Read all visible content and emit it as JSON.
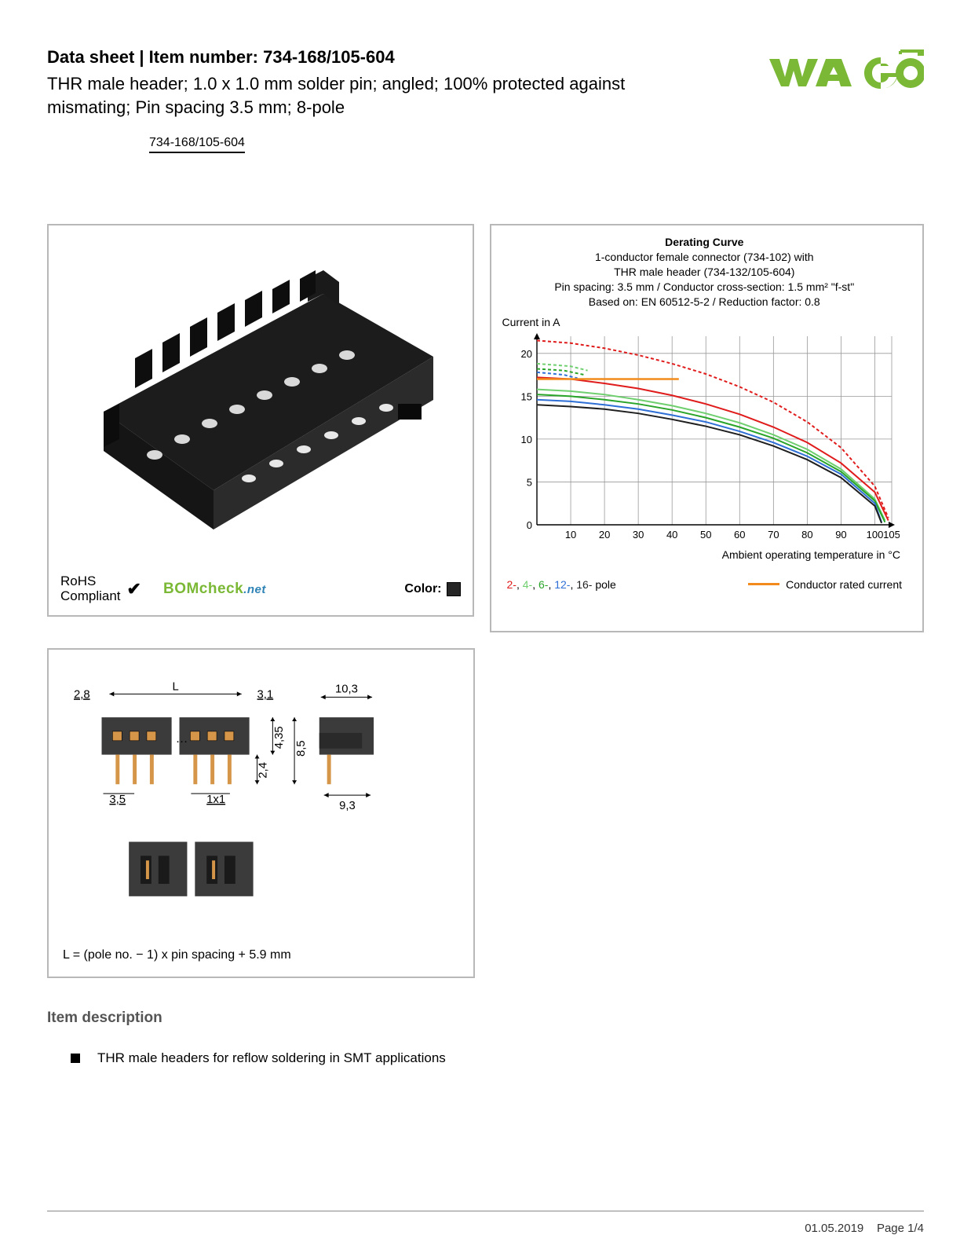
{
  "header": {
    "title_prefix": "Data sheet  |  Item number:",
    "item_number": "734-168/105-604",
    "subtitle": "THR male header; 1.0 x 1.0 mm solder pin; angled; 100% protected against mismating; Pin spacing 3.5 mm; 8-pole",
    "item_link": "734-168/105-604",
    "logo_color": "#7ab835"
  },
  "product_panel": {
    "rohs_line1": "RoHS",
    "rohs_line2": "Compliant",
    "bomcheck_text": "BOMcheck",
    "bomcheck_suffix": ".net",
    "color_label": "Color:",
    "swatch_color": "#262626",
    "connector_body_color": "#222222",
    "connector_pin_color": "#dddddd"
  },
  "chart": {
    "title_bold": "Derating Curve",
    "title_line1": "1-conductor female connector (734-102) with",
    "title_line2": "THR male header (734-132/105-604)",
    "title_line3": "Pin spacing: 3.5 mm / Conductor cross-section: 1.5 mm² \"f-st\"",
    "title_line4": "Based on: EN 60512-5-2 / Reduction factor: 0.8",
    "y_axis_label": "Current in A",
    "x_axis_label": "Ambient operating temperature in °C",
    "y_ticks": [
      0,
      5,
      10,
      15,
      20
    ],
    "y_lim": [
      0,
      22
    ],
    "x_ticks": [
      10,
      20,
      30,
      40,
      50,
      60,
      70,
      80,
      90,
      100,
      105
    ],
    "x_lim": [
      0,
      105
    ],
    "grid_color": "#999999",
    "series": [
      {
        "name": "2-pole",
        "color": "#e01b1b",
        "dash": "4,3",
        "points": [
          [
            0,
            21.5
          ],
          [
            10,
            21.2
          ],
          [
            20,
            20.6
          ],
          [
            30,
            19.8
          ],
          [
            40,
            18.8
          ],
          [
            50,
            17.6
          ],
          [
            60,
            16.1
          ],
          [
            70,
            14.3
          ],
          [
            80,
            12.0
          ],
          [
            90,
            9.0
          ],
          [
            100,
            4.5
          ],
          [
            104,
            0.8
          ]
        ]
      },
      {
        "name": "2-pole-solid",
        "color": "#e01b1b",
        "dash": "none",
        "points": [
          [
            0,
            17.2
          ],
          [
            10,
            17.0
          ],
          [
            20,
            16.5
          ],
          [
            30,
            15.9
          ],
          [
            40,
            15.1
          ],
          [
            50,
            14.1
          ],
          [
            60,
            12.9
          ],
          [
            70,
            11.4
          ],
          [
            80,
            9.6
          ],
          [
            90,
            7.2
          ],
          [
            100,
            3.8
          ],
          [
            104,
            0.5
          ]
        ]
      },
      {
        "name": "4-pole-dash",
        "color": "#6fcf6f",
        "dash": "4,3",
        "points": [
          [
            0,
            18.8
          ],
          [
            10,
            18.5
          ],
          [
            15,
            18.0
          ]
        ]
      },
      {
        "name": "6-pole-dash",
        "color": "#2aa52a",
        "dash": "4,3",
        "points": [
          [
            0,
            18.2
          ],
          [
            8,
            18.0
          ],
          [
            14,
            17.5
          ]
        ]
      },
      {
        "name": "12-pole-dash",
        "color": "#2e6fd6",
        "dash": "4,3",
        "points": [
          [
            0,
            17.8
          ],
          [
            8,
            17.5
          ],
          [
            12,
            17.1
          ]
        ]
      },
      {
        "name": "4-pole",
        "color": "#6fcf6f",
        "dash": "none",
        "points": [
          [
            0,
            15.8
          ],
          [
            10,
            15.6
          ],
          [
            20,
            15.2
          ],
          [
            30,
            14.6
          ],
          [
            40,
            13.9
          ],
          [
            50,
            13.0
          ],
          [
            60,
            11.9
          ],
          [
            70,
            10.5
          ],
          [
            80,
            8.8
          ],
          [
            90,
            6.5
          ],
          [
            100,
            3.0
          ],
          [
            103,
            0.5
          ]
        ]
      },
      {
        "name": "6-pole",
        "color": "#2aa52a",
        "dash": "none",
        "points": [
          [
            0,
            15.2
          ],
          [
            10,
            15.0
          ],
          [
            20,
            14.6
          ],
          [
            30,
            14.1
          ],
          [
            40,
            13.4
          ],
          [
            50,
            12.5
          ],
          [
            60,
            11.4
          ],
          [
            70,
            10.1
          ],
          [
            80,
            8.4
          ],
          [
            90,
            6.2
          ],
          [
            100,
            2.8
          ],
          [
            103,
            0.3
          ]
        ]
      },
      {
        "name": "12-pole",
        "color": "#2e6fd6",
        "dash": "none",
        "points": [
          [
            0,
            14.6
          ],
          [
            10,
            14.4
          ],
          [
            20,
            14.0
          ],
          [
            30,
            13.5
          ],
          [
            40,
            12.8
          ],
          [
            50,
            12.0
          ],
          [
            60,
            10.9
          ],
          [
            70,
            9.6
          ],
          [
            80,
            8.0
          ],
          [
            90,
            5.9
          ],
          [
            100,
            2.5
          ],
          [
            102,
            0.3
          ]
        ]
      },
      {
        "name": "16-pole",
        "color": "#1f1f1f",
        "dash": "none",
        "points": [
          [
            0,
            14.0
          ],
          [
            10,
            13.8
          ],
          [
            20,
            13.5
          ],
          [
            30,
            13.0
          ],
          [
            40,
            12.3
          ],
          [
            50,
            11.5
          ],
          [
            60,
            10.5
          ],
          [
            70,
            9.2
          ],
          [
            80,
            7.6
          ],
          [
            90,
            5.5
          ],
          [
            100,
            2.2
          ],
          [
            102,
            0.2
          ]
        ]
      },
      {
        "name": "conductor-rated",
        "color": "#f28b1c",
        "dash": "none",
        "width": 2.5,
        "points": [
          [
            0,
            17.0
          ],
          [
            42,
            17.0
          ]
        ]
      }
    ],
    "legend": {
      "poles": [
        {
          "label": "2-",
          "color": "#e01b1b"
        },
        {
          "label": "4-",
          "color": "#6fcf6f"
        },
        {
          "label": "6-",
          "color": "#2aa52a"
        },
        {
          "label": "12-",
          "color": "#2e6fd6"
        },
        {
          "label": "16-",
          "color": "#1f1f1f"
        }
      ],
      "poles_suffix": " pole",
      "conductor_label": "Conductor rated current",
      "conductor_color": "#f28b1c"
    }
  },
  "dimensions": {
    "labels": {
      "L": "L",
      "d28": "2,8",
      "d31": "3,1",
      "d435": "4,35",
      "d85": "8,5",
      "d103": "10,3",
      "d35": "3,5",
      "d1x1": "1x1",
      "d24": "2,4",
      "d93": "9,3"
    },
    "formula": "L = (pole no. − 1) x pin spacing + 5.9 mm",
    "body_color": "#3b3b3b",
    "pin_color": "#d59649"
  },
  "description": {
    "heading": "Item description",
    "bullet1": "THR male headers for reflow soldering in SMT applications"
  },
  "footer": {
    "date": "01.05.2019",
    "page": "Page 1/4"
  }
}
